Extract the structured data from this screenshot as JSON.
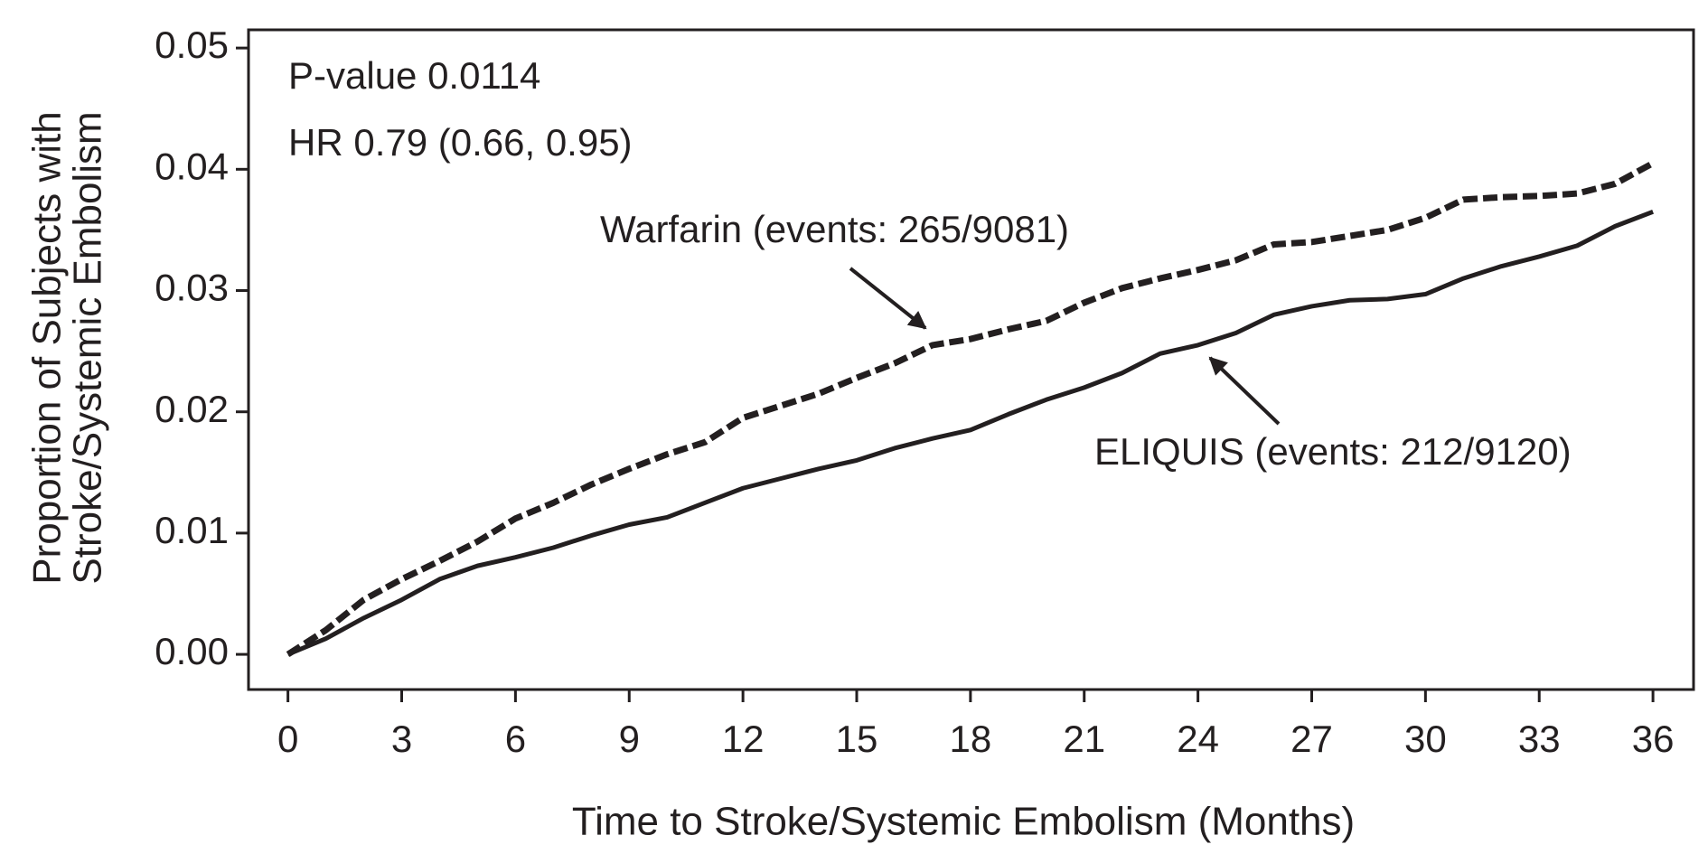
{
  "chart_data": {
    "type": "line",
    "xlabel": "Time to Stroke/Systemic Embolism (Months)",
    "ylabel": [
      "Proportion of Subjects with",
      "Stroke/Systemic Embolism"
    ],
    "annotations": [
      "P-value 0.0114",
      "HR 0.79 (0.66, 0.95)"
    ],
    "x": [
      0,
      1,
      2,
      3,
      4,
      5,
      6,
      7,
      8,
      9,
      10,
      11,
      12,
      13,
      14,
      15,
      16,
      17,
      18,
      19,
      20,
      21,
      22,
      23,
      24,
      25,
      26,
      27,
      28,
      29,
      30,
      31,
      32,
      33,
      34,
      35,
      36
    ],
    "series": [
      {
        "name": "Warfarin (events: 265/9081)",
        "color": "#231f20",
        "dashed": true,
        "values": [
          0,
          0.002,
          0.0045,
          0.0062,
          0.0077,
          0.0093,
          0.0112,
          0.0125,
          0.014,
          0.0153,
          0.0165,
          0.0175,
          0.0195,
          0.0205,
          0.0215,
          0.0228,
          0.024,
          0.0255,
          0.026,
          0.0268,
          0.0275,
          0.029,
          0.0302,
          0.031,
          0.0317,
          0.0325,
          0.0338,
          0.034,
          0.0345,
          0.035,
          0.036,
          0.0375,
          0.0377,
          0.0378,
          0.038,
          0.0388,
          0.0405
        ]
      },
      {
        "name": "ELIQUIS (events: 212/9120)",
        "color": "#231f20",
        "dashed": false,
        "values": [
          0,
          0.0013,
          0.003,
          0.0045,
          0.0062,
          0.0073,
          0.008,
          0.0088,
          0.0098,
          0.0107,
          0.0113,
          0.0125,
          0.0137,
          0.0145,
          0.0153,
          0.016,
          0.017,
          0.0178,
          0.0185,
          0.0198,
          0.021,
          0.022,
          0.0232,
          0.0248,
          0.0255,
          0.0265,
          0.028,
          0.0287,
          0.0292,
          0.0293,
          0.0297,
          0.031,
          0.032,
          0.0328,
          0.0337,
          0.0353,
          0.0365
        ]
      }
    ],
    "xlim": [
      -1.04,
      37.07
    ],
    "ylim": [
      -0.0029,
      0.0515
    ],
    "xticks": [
      0,
      3,
      6,
      9,
      12,
      15,
      18,
      21,
      24,
      27,
      30,
      33,
      36
    ],
    "yticks": [
      {
        "value": 0,
        "label": "0.00"
      },
      0.01,
      0.02,
      0.03,
      0.04,
      0.05
    ]
  }
}
